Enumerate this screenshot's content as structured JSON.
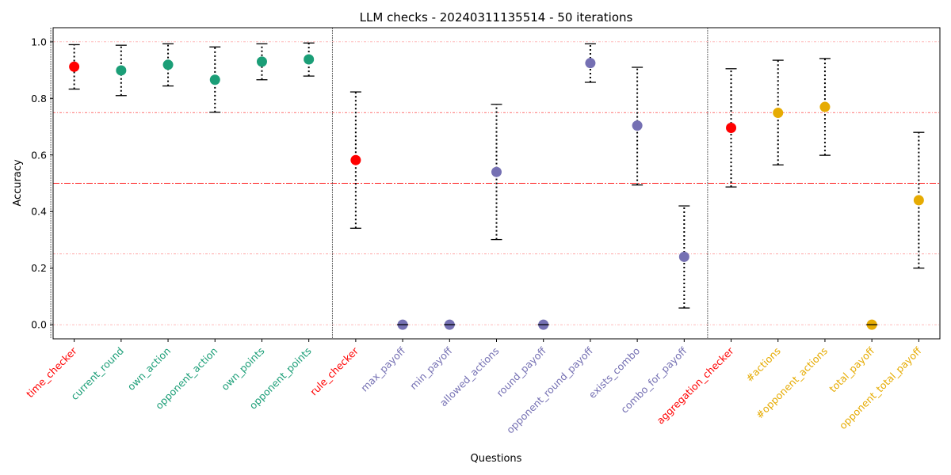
{
  "chart_data": {
    "type": "scatter",
    "title": "LLM checks - 20240311135514 - 50 iterations",
    "xlabel": "Questions",
    "ylabel": "Accuracy",
    "ylim": [
      -0.05,
      1.05
    ],
    "yticks": [
      0.0,
      0.2,
      0.4,
      0.6,
      0.8,
      1.0
    ],
    "reference_lines": [
      1.0,
      0.75,
      0.5,
      0.25,
      0.0
    ],
    "group_separators_after": [
      0,
      6,
      14
    ],
    "colors": {
      "checker": "#ff0000",
      "time_group": "#1b9e77",
      "rule_group": "#7570b3",
      "aggregation_group": "#e6ab02",
      "reference_line": "#ff0000",
      "errorbar": "#000000"
    },
    "points": [
      {
        "label": "time_checker",
        "group": "checker",
        "value": 0.912,
        "low": 0.833,
        "high": 0.99
      },
      {
        "label": "current_round",
        "group": "time_group",
        "value": 0.899,
        "low": 0.81,
        "high": 0.988
      },
      {
        "label": "own_action",
        "group": "time_group",
        "value": 0.919,
        "low": 0.844,
        "high": 0.993
      },
      {
        "label": "opponent_action",
        "group": "time_group",
        "value": 0.866,
        "low": 0.751,
        "high": 0.982
      },
      {
        "label": "own_points",
        "group": "time_group",
        "value": 0.93,
        "low": 0.866,
        "high": 0.993
      },
      {
        "label": "opponent_points",
        "group": "time_group",
        "value": 0.938,
        "low": 0.879,
        "high": 0.996
      },
      {
        "label": "rule_checker",
        "group": "checker",
        "value": 0.582,
        "low": 0.341,
        "high": 0.823
      },
      {
        "label": "max_payoff",
        "group": "rule_group",
        "value": 0.0,
        "low": null,
        "high": null
      },
      {
        "label": "min_payoff",
        "group": "rule_group",
        "value": 0.0,
        "low": null,
        "high": null
      },
      {
        "label": "allowed_actions",
        "group": "rule_group",
        "value": 0.54,
        "low": 0.301,
        "high": 0.779
      },
      {
        "label": "round_payoff",
        "group": "rule_group",
        "value": 0.0,
        "low": null,
        "high": null
      },
      {
        "label": "opponent_round_payoff",
        "group": "rule_group",
        "value": 0.925,
        "low": 0.857,
        "high": 0.993
      },
      {
        "label": "exists_combo",
        "group": "rule_group",
        "value": 0.704,
        "low": 0.494,
        "high": 0.91
      },
      {
        "label": "combo_for_payoff",
        "group": "rule_group",
        "value": 0.24,
        "low": 0.059,
        "high": 0.42
      },
      {
        "label": "aggregation_checker",
        "group": "checker",
        "value": 0.696,
        "low": 0.487,
        "high": 0.905
      },
      {
        "label": "#actions",
        "group": "aggregation_group",
        "value": 0.749,
        "low": 0.565,
        "high": 0.935
      },
      {
        "label": "#opponent_actions",
        "group": "aggregation_group",
        "value": 0.77,
        "low": 0.599,
        "high": 0.941
      },
      {
        "label": "total_payoff",
        "group": "aggregation_group",
        "value": 0.0,
        "low": null,
        "high": null
      },
      {
        "label": "opponent_total_payoff",
        "group": "aggregation_group",
        "value": 0.44,
        "low": 0.2,
        "high": 0.68
      }
    ]
  }
}
